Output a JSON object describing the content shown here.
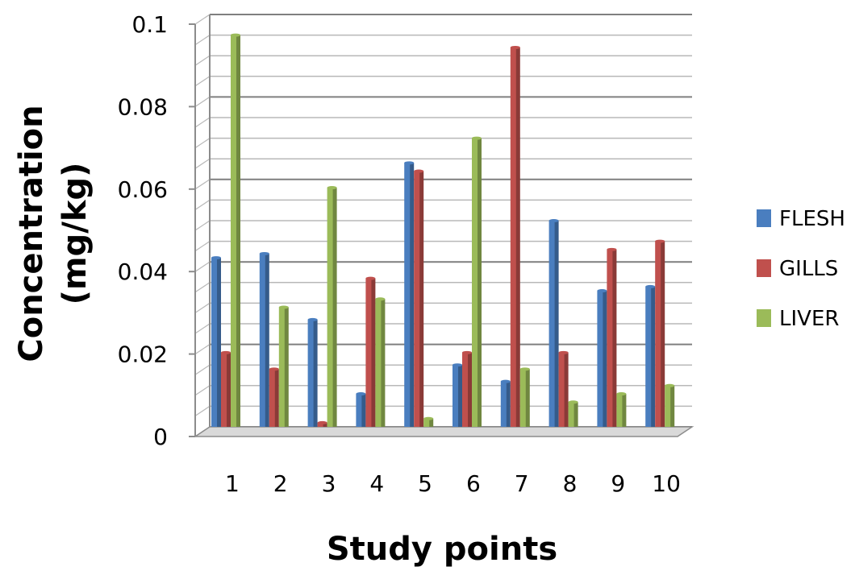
{
  "chart_data": {
    "type": "bar",
    "title": "",
    "xlabel": "Study points",
    "ylabel_lines": [
      "Concentration",
      "(mg/kg)"
    ],
    "categories": [
      "1",
      "2",
      "3",
      "4",
      "5",
      "6",
      "7",
      "8",
      "9",
      "10"
    ],
    "ylim": [
      0,
      0.1
    ],
    "yticks": [
      "0",
      "0.02",
      "0.04",
      "0.06",
      "0.08",
      "0.1"
    ],
    "grid": true,
    "legend_position": "right",
    "series": [
      {
        "name": "FLESH",
        "color": "#4a7ebf",
        "values": [
          0.041,
          0.042,
          0.026,
          0.008,
          0.064,
          0.015,
          0.011,
          0.05,
          0.033,
          0.034
        ]
      },
      {
        "name": "GILLS",
        "color": "#c0504d",
        "values": [
          0.018,
          0.014,
          0.001,
          0.036,
          0.062,
          0.018,
          0.092,
          0.018,
          0.043,
          0.045
        ]
      },
      {
        "name": "LIVER",
        "color": "#9bbb59",
        "values": [
          0.095,
          0.029,
          0.058,
          0.031,
          0.002,
          0.07,
          0.014,
          0.006,
          0.008,
          0.01
        ]
      }
    ]
  }
}
